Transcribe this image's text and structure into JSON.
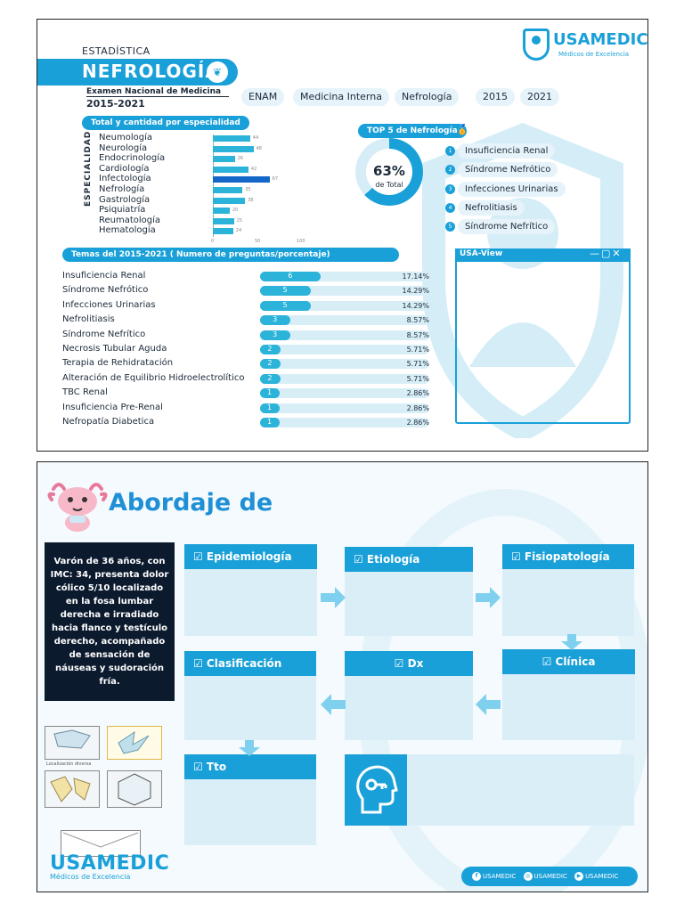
{
  "slide1": {
    "section": "ESTADÍSTICA",
    "title": "NEFROLOGÍA",
    "brand": "USAMEDIC",
    "brand_sub": "Médicos de Excelencia",
    "exam_title": "Examen Nacional de Medicina",
    "exam_years": "2015-2021",
    "tags": [
      "ENAM",
      "Medicina Interna",
      "Nefrología",
      "2015",
      "2021"
    ],
    "specialty_pill": "Total y cantidad por especialidad",
    "specialty_axis": "ESPECIALIDAD",
    "specialties": [
      {
        "label": "Neumología",
        "value": 44
      },
      {
        "label": "Neurología",
        "value": 48
      },
      {
        "label": "Endocrinología",
        "value": 26
      },
      {
        "label": "Cardiología",
        "value": 42
      },
      {
        "label": "Infectología",
        "value": 67,
        "highlight": true
      },
      {
        "label": "Nefrología",
        "value": 35
      },
      {
        "label": "Gastrología",
        "value": 38
      },
      {
        "label": "Psiquiatría",
        "value": 20
      },
      {
        "label": "Reumatología",
        "value": 25
      },
      {
        "label": "Hematología",
        "value": 24
      }
    ],
    "specialty_ticks": [
      "0",
      "50",
      "100"
    ],
    "top5_pill": "TOP 5 de Nefrología",
    "donut_pct": "63%",
    "donut_label": "de Total",
    "donut_fraction": 0.63,
    "top5": [
      {
        "n": "1",
        "label": "Insuficiencia Renal"
      },
      {
        "n": "2",
        "label": "Síndrome Nefrótico"
      },
      {
        "n": "3",
        "label": "Infecciones Urinarias"
      },
      {
        "n": "4",
        "label": "Nefrolitiasis"
      },
      {
        "n": "5",
        "label": "Síndrome Nefrítico"
      }
    ],
    "topics_pill": "Temas del 2015-2021 ( Numero de preguntas/porcentaje)",
    "topics": [
      {
        "label": "Insuficiencia Renal",
        "count": "6",
        "pct": "17.14%",
        "frac": 0.1714
      },
      {
        "label": "Síndrome Nefrótico",
        "count": "5",
        "pct": "14.29%",
        "frac": 0.1429
      },
      {
        "label": "Infecciones Urinarias",
        "count": "5",
        "pct": "14.29%",
        "frac": 0.1429
      },
      {
        "label": "Nefrolitiasis",
        "count": "3",
        "pct": "8.57%",
        "frac": 0.0857
      },
      {
        "label": "Síndrome Nefrítico",
        "count": "3",
        "pct": "8.57%",
        "frac": 0.0857
      },
      {
        "label": "Necrosis Tubular Aguda",
        "count": "2",
        "pct": "5.71%",
        "frac": 0.0571
      },
      {
        "label": "Terapia de Rehidratación",
        "count": "2",
        "pct": "5.71%",
        "frac": 0.0571
      },
      {
        "label": "Alteración de Equilibrio Hidroelectrolítico",
        "count": "2",
        "pct": "5.71%",
        "frac": 0.0571
      },
      {
        "label": "TBC Renal",
        "count": "1",
        "pct": "2.86%",
        "frac": 0.0286
      },
      {
        "label": "Insuficiencia Pre-Renal",
        "count": "1",
        "pct": "2.86%",
        "frac": 0.0286
      },
      {
        "label": "Nefropatía Diabetica",
        "count": "1",
        "pct": "2.86%",
        "frac": 0.0286
      }
    ],
    "usaview_title": "USA-View",
    "usaview_controls": "—▢✕"
  },
  "slide2": {
    "title": "Abordaje de",
    "case_text": "Varón de 36 años, con IMC: 34, presenta dolor cólico 5/10 localizado en la fosa lumbar derecha e irradiado hacia flanco y testículo derecho, acompañado de sensación de náuseas y sudoración fría.",
    "boxes": {
      "epidemiologia": "☑ Epidemiología",
      "etiologia": "☑ Etiología",
      "fisiopatologia": "☑ Fisiopatología",
      "clasificacion": "☑ Clasificación",
      "dx": "☑ Dx",
      "clinica": "☑ Clínica",
      "tto": "☑ Tto"
    },
    "thumb_caption": "Localización diversa",
    "brand": "USAMEDIC",
    "brand_sub": "Médicos de Excelencia",
    "social": [
      "USAMEDIC",
      "USAMEDIC",
      "USAMEDIC"
    ],
    "social_icons": [
      "facebook-icon",
      "instagram-icon",
      "youtube-icon"
    ],
    "accent": "#1aa0d8"
  }
}
